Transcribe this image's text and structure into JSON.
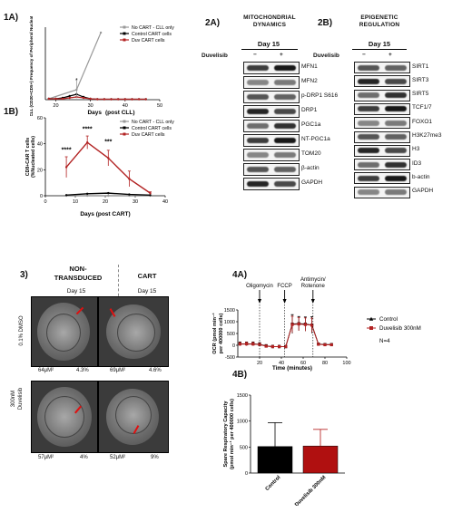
{
  "panel_1A": {
    "label": "1A)",
    "ylabel": "OSU-CLL (CD20+CD5+) Frequency of Peripheral Nucleated Cells",
    "xlabel": "Days (post CLL)",
    "legend": [
      "No CART - CLL only",
      "Control CART cells",
      "Duv CART cells"
    ],
    "annotation": "*"
  },
  "panel_1B": {
    "label": "1B)",
    "ylabel": "CD8+CAR T cells (%Nucleated cells)",
    "xlabel": "Days (post CART)",
    "legend": [
      "No CART - CLL only",
      "Control CART cells",
      "Duv CART cells"
    ],
    "annotations": [
      "****",
      "****",
      "***"
    ]
  },
  "panel_2A": {
    "label": "2A)",
    "title_line1": "MITOCHONDRIAL",
    "title_line2": "DYNAMICS",
    "day": "Day 15",
    "treatment": "Duvelisib",
    "minus": "−",
    "plus": "+",
    "bands": [
      "MFN1",
      "MFN2",
      "p-DRP1 S616",
      "DRP1",
      "PGC1a",
      "NT-PGC1a",
      "TOM20",
      "β-actin",
      "GAPDH"
    ]
  },
  "panel_2B": {
    "label": "2B)",
    "title_line1": "EPIGENETIC",
    "title_line2": "REGULATION",
    "day": "Day 15",
    "treatment": "Duvelisib",
    "minus": "−",
    "plus": "+",
    "bands": [
      "SIRT1",
      "SIRT3",
      "SIRT5",
      "TCF1/7",
      "FOXO1",
      "H3K27me3",
      "H3",
      "ID3",
      "b-actin",
      "GAPDH"
    ]
  },
  "panel_3": {
    "label": "3)",
    "col1_line1": "NON-",
    "col1_line2": "TRANSDUCED",
    "col2": "CART",
    "day1": "Day 15",
    "day2": "Day 15",
    "row1": "0.1% DMSO",
    "row2_line1": "300nM",
    "row2_line2": "Duvelisib",
    "captions": [
      [
        "64μM²",
        "4.3%"
      ],
      [
        "69μM²",
        "4.6%"
      ],
      [
        "57μM²",
        "4%"
      ],
      [
        "52μM²",
        "9%"
      ]
    ]
  },
  "panel_4A": {
    "label": "4A)",
    "injections": [
      "Oligomycin",
      "FCCP",
      "Antimycin/",
      "Rotenone"
    ],
    "ylabel_line1": "OCR (pmol min⁻¹",
    "ylabel_line2": "per 400000 cells)",
    "xlabel": "Time (minutes)",
    "legend": [
      "Control",
      "Duvelisib 300nM"
    ],
    "n_label": "N=4",
    "colors": {
      "control": "#000000",
      "duvelisib": "#b22222"
    }
  },
  "panel_4B": {
    "label": "4B)",
    "ylabel_line1": "Spare Respiratory Capacity",
    "ylabel_line2": "(pmol min⁻¹ per 400000 cells)",
    "colors": {
      "control": "#000000",
      "duvelisib": "#b01010"
    }
  },
  "chart_data": [
    {
      "id": "1A",
      "type": "line",
      "xlabel": "Days (post CLL)",
      "ylabel": "OSU-CLL (CD20+CD5+) Frequency of Peripheral Nucleated Cells",
      "xlim": [
        17,
        50
      ],
      "xticks": [
        20,
        30,
        40,
        50
      ],
      "ylim": [
        0,
        8
      ],
      "series": [
        {
          "name": "No CART - CLL only",
          "color": "#999999",
          "x": [
            18,
            26,
            33
          ],
          "y": [
            0.1,
            1.1,
            7.4
          ]
        },
        {
          "name": "Control CART cells",
          "color": "#000000",
          "x": [
            18,
            20,
            22,
            24,
            26,
            28,
            30,
            32,
            34,
            36,
            38,
            40,
            42,
            44,
            46
          ],
          "y": [
            0.1,
            0.1,
            0.2,
            0.4,
            0.6,
            0.3,
            0.1,
            0.05,
            0.05,
            0.05,
            0.05,
            0.05,
            0.05,
            0.05,
            0.05
          ]
        },
        {
          "name": "Duv CART cells",
          "color": "#b22222",
          "x": [
            18,
            20,
            22,
            24,
            26,
            28,
            30,
            32,
            34,
            36,
            38,
            40,
            42,
            44,
            46
          ],
          "y": [
            0.1,
            0.1,
            0.1,
            0.2,
            0.3,
            0.2,
            0.1,
            0.05,
            0.05,
            0.05,
            0.05,
            0.05,
            0.05,
            0.05,
            0.05
          ]
        }
      ]
    },
    {
      "id": "1B",
      "type": "line",
      "xlabel": "Days (post CART)",
      "ylabel": "CD8+CAR T cells (%Nucleated cells)",
      "xlim": [
        0,
        40
      ],
      "xticks": [
        0,
        10,
        20,
        30,
        40
      ],
      "ylim": [
        0,
        60
      ],
      "yticks": [
        0,
        20,
        40,
        60
      ],
      "series": [
        {
          "name": "No CART - CLL only",
          "color": "#999999",
          "x": [
            7,
            14,
            21,
            28,
            35
          ],
          "y": [
            0,
            0,
            0,
            0,
            0
          ]
        },
        {
          "name": "Control CART cells",
          "color": "#000000",
          "x": [
            7,
            14,
            21,
            28,
            35
          ],
          "y": [
            0.5,
            1.5,
            2,
            1,
            0.5
          ]
        },
        {
          "name": "Duv CART cells",
          "color": "#b22222",
          "x": [
            7,
            14,
            21,
            28,
            35
          ],
          "y": [
            22,
            41,
            29,
            13,
            2
          ],
          "err": [
            8,
            5,
            6,
            6,
            1
          ]
        }
      ]
    },
    {
      "id": "4A",
      "type": "line",
      "xlabel": "Time (minutes)",
      "ylabel": "OCR (pmol min⁻¹ per 400000 cells)",
      "xlim": [
        0,
        100
      ],
      "xticks": [
        20,
        40,
        60,
        80,
        100
      ],
      "ylim": [
        -500,
        1500
      ],
      "yticks": [
        -500,
        0,
        500,
        1000,
        1500
      ],
      "series": [
        {
          "name": "Control",
          "color": "#000000",
          "x": [
            2,
            8,
            14,
            20,
            26,
            32,
            38,
            44,
            50,
            56,
            62,
            68,
            74,
            80,
            86
          ],
          "y": [
            60,
            60,
            60,
            40,
            -30,
            -60,
            -60,
            -60,
            900,
            920,
            900,
            860,
            50,
            30,
            30
          ],
          "err": [
            80,
            80,
            80,
            70,
            60,
            60,
            60,
            60,
            400,
            300,
            300,
            350,
            50,
            40,
            40
          ]
        },
        {
          "name": "Duvelisib 300nM",
          "color": "#b22222",
          "x": [
            2,
            8,
            14,
            20,
            26,
            32,
            38,
            44,
            50,
            56,
            62,
            68,
            74,
            80,
            86
          ],
          "y": [
            50,
            55,
            50,
            30,
            -40,
            -60,
            -60,
            -60,
            880,
            900,
            880,
            850,
            40,
            20,
            20
          ],
          "err": [
            70,
            70,
            70,
            60,
            50,
            50,
            50,
            50,
            350,
            280,
            280,
            300,
            40,
            30,
            30
          ]
        }
      ]
    },
    {
      "id": "4B",
      "type": "bar",
      "ylabel": "Spare Respiratory Capacity (pmol min⁻¹ per 400000 cells)",
      "categories": [
        "Control",
        "Duvelisib 300nM"
      ],
      "values": [
        510,
        520
      ],
      "err": [
        460,
        320
      ],
      "ylim": [
        0,
        1500
      ],
      "yticks": [
        0,
        500,
        1000,
        1500
      ],
      "colors": [
        "#000000",
        "#b01010"
      ]
    }
  ]
}
